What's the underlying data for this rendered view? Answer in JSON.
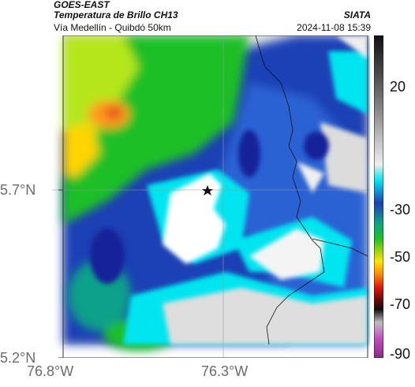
{
  "header": {
    "satellite": "GOES-EAST",
    "product": "Temperatura de Brillo CH13",
    "region": "Vía Medellín - Quibdó 50km",
    "organization": "SIATA",
    "datetime": "2024-11-08 15:39"
  },
  "map": {
    "lat_labels": [
      "5.7°N",
      "5.2°N"
    ],
    "lon_labels": [
      "76.8°W",
      "76.3°W"
    ],
    "marker": "star-icon"
  },
  "colorbar": {
    "ticks": [
      "20",
      "-30",
      "-50",
      "-70",
      "-90"
    ],
    "colors": {
      "warm": "#d9d9d9",
      "cyan": "#00e5f0",
      "blue": "#1d3fb5",
      "green": "#1fbf25",
      "yellow": "#ffe600",
      "orange": "#ff8c00",
      "red": "#e01a10",
      "magenta": "#c24fc2"
    }
  }
}
